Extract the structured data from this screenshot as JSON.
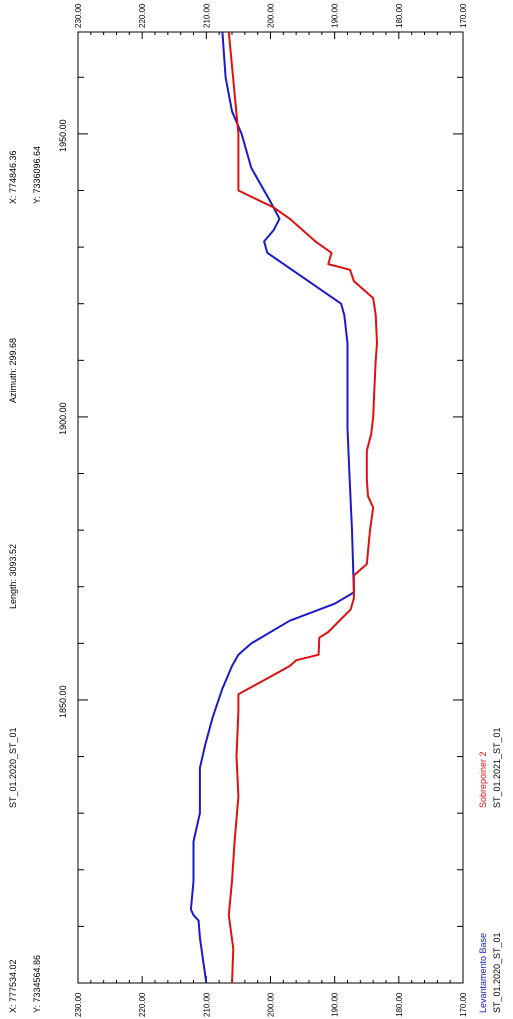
{
  "chart_data": {
    "type": "line",
    "orientation": "rotated-90-cw",
    "header": {
      "start_x": "X: 777534.02",
      "start_y": "Y: 7334564.86",
      "section_name": "ST_01.2020_ST_01",
      "length": "Length: 3093.52",
      "azimuth": "Azimuth: 299.68",
      "end_x": "X: 774846.36",
      "end_y": "Y: 7336096.64"
    },
    "x_axis": {
      "range": [
        1800,
        1968
      ],
      "ticks": [
        1850.0,
        1900.0,
        1950.0
      ],
      "tick_labels": [
        "1850.00",
        "1900.00",
        "1950.00"
      ]
    },
    "y_axis": {
      "range": [
        170,
        230
      ],
      "ticks": [
        230,
        220,
        210,
        200,
        190,
        180,
        170
      ],
      "tick_labels": [
        "230.00",
        "220.00",
        "210.00",
        "200.00",
        "190.00",
        "180.00",
        "170.00"
      ]
    },
    "grid": false,
    "legend_placement": "bottom",
    "series": [
      {
        "name": "Levantamento Base",
        "file": "ST_01.2020_ST_01",
        "color": "#1a1acc",
        "points": [
          [
            1800.0,
            210.0
          ],
          [
            1808.0,
            211.0
          ],
          [
            1811.0,
            211.2
          ],
          [
            1812.0,
            212.0
          ],
          [
            1813.0,
            212.4
          ],
          [
            1818.0,
            212.0
          ],
          [
            1825.0,
            212.0
          ],
          [
            1830.0,
            211.0
          ],
          [
            1838.0,
            211.0
          ],
          [
            1842.0,
            210.2
          ],
          [
            1847.0,
            209.0
          ],
          [
            1852.0,
            207.5
          ],
          [
            1856.0,
            206.0
          ],
          [
            1858.0,
            205.0
          ],
          [
            1860.0,
            203.0
          ],
          [
            1864.0,
            197.0
          ],
          [
            1867.0,
            190.0
          ],
          [
            1869.0,
            187.0
          ],
          [
            1880.0,
            187.3
          ],
          [
            1890.0,
            187.7
          ],
          [
            1898.0,
            188.0
          ],
          [
            1905.0,
            188.0
          ],
          [
            1913.0,
            188.0
          ],
          [
            1918.0,
            188.5
          ],
          [
            1920.0,
            189.0
          ],
          [
            1929.0,
            200.5
          ],
          [
            1931.0,
            201.0
          ],
          [
            1933.0,
            199.5
          ],
          [
            1935.0,
            198.6
          ],
          [
            1938.0,
            200.0
          ],
          [
            1944.0,
            203.0
          ],
          [
            1950.0,
            204.5
          ],
          [
            1954.0,
            206.0
          ],
          [
            1960.0,
            207.0
          ],
          [
            1968.0,
            207.5
          ]
        ]
      },
      {
        "name": "Sobrepoiner 2",
        "file": "ST_01.2021_ST_01",
        "color": "#dd1111",
        "points": [
          [
            1800.0,
            206.0
          ],
          [
            1806.0,
            205.8
          ],
          [
            1812.0,
            206.5
          ],
          [
            1818.0,
            206.0
          ],
          [
            1825.0,
            205.6
          ],
          [
            1833.0,
            205.0
          ],
          [
            1840.0,
            205.3
          ],
          [
            1848.0,
            205.0
          ],
          [
            1850.0,
            205.0
          ],
          [
            1851.0,
            205.0
          ],
          [
            1856.0,
            197.0
          ],
          [
            1857.0,
            196.0
          ],
          [
            1858.0,
            192.5
          ],
          [
            1861.0,
            192.4
          ],
          [
            1862.0,
            191.0
          ],
          [
            1866.0,
            187.5
          ],
          [
            1868.0,
            187.0
          ],
          [
            1872.0,
            187.0
          ],
          [
            1874.0,
            185.0
          ],
          [
            1880.0,
            184.5
          ],
          [
            1884.0,
            184.0
          ],
          [
            1886.0,
            184.8
          ],
          [
            1889.0,
            185.0
          ],
          [
            1894.0,
            185.0
          ],
          [
            1897.0,
            184.3
          ],
          [
            1900.0,
            184.0
          ],
          [
            1905.0,
            183.8
          ],
          [
            1910.0,
            183.6
          ],
          [
            1913.0,
            183.4
          ],
          [
            1918.0,
            183.6
          ],
          [
            1921.0,
            184.0
          ],
          [
            1924.0,
            187.0
          ],
          [
            1926.0,
            187.6
          ],
          [
            1927.0,
            191.0
          ],
          [
            1929.0,
            190.5
          ],
          [
            1931.0,
            193.0
          ],
          [
            1935.0,
            197.0
          ],
          [
            1937.0,
            199.5
          ],
          [
            1940.0,
            205.0
          ],
          [
            1944.0,
            205.0
          ],
          [
            1950.0,
            205.0
          ],
          [
            1956.0,
            205.5
          ],
          [
            1962.0,
            206.0
          ],
          [
            1968.0,
            206.5
          ]
        ]
      }
    ]
  }
}
